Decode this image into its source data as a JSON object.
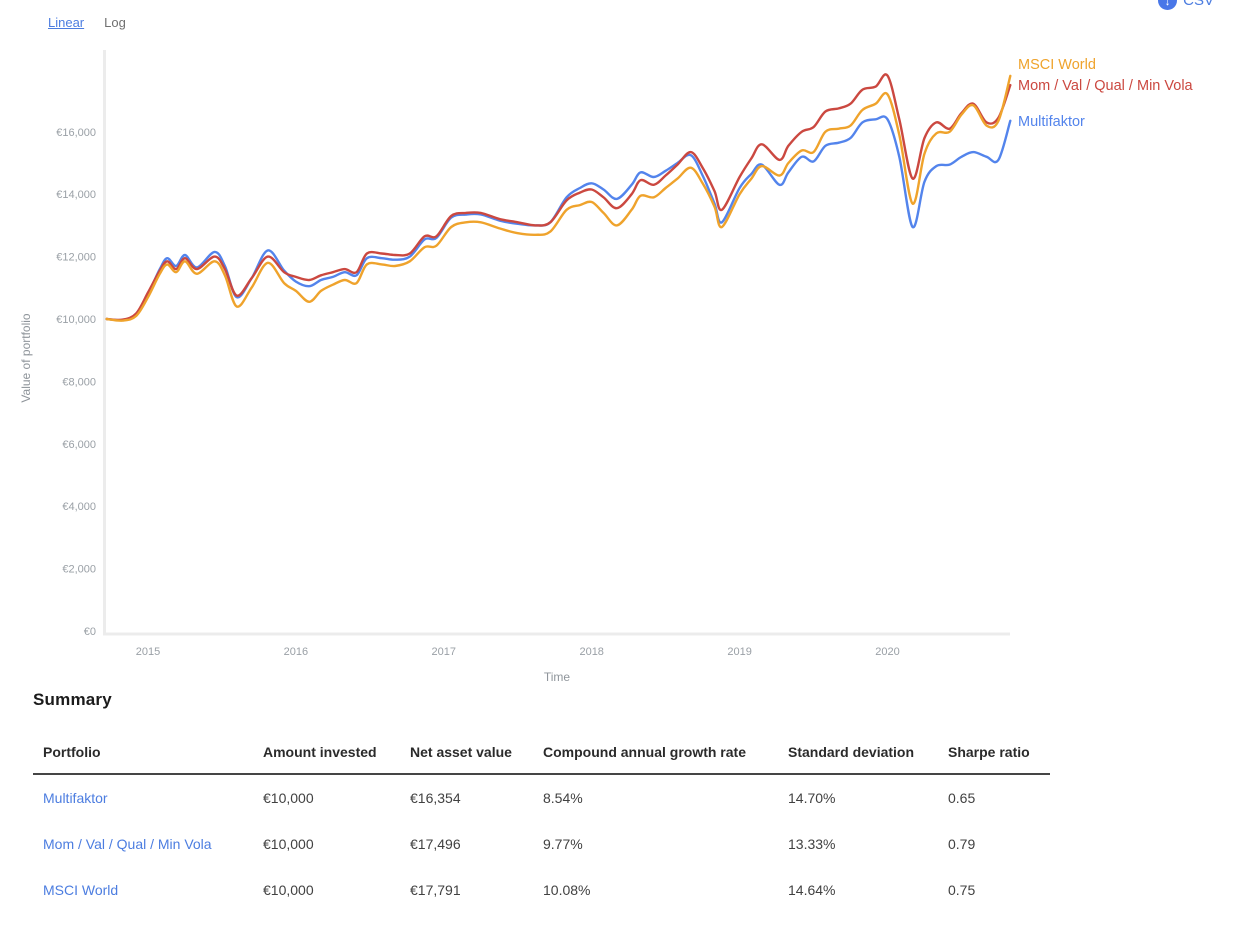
{
  "controls": {
    "scale_linear": "Linear",
    "scale_log": "Log",
    "csv_label": "CSV"
  },
  "chart_data": {
    "type": "line",
    "xlabel": "Time",
    "ylabel": "Value of portfolio",
    "grid": false,
    "legend_position": "right-of-line-ends",
    "x_axis": {
      "ticks": [
        {
          "value": 2015,
          "label": "2015"
        },
        {
          "value": 2016,
          "label": "2016"
        },
        {
          "value": 2017,
          "label": "2017"
        },
        {
          "value": 2018,
          "label": "2018"
        },
        {
          "value": 2019,
          "label": "2019"
        },
        {
          "value": 2020,
          "label": "2020"
        }
      ],
      "range": [
        2014.7,
        2020.85
      ]
    },
    "y_axis": {
      "ticks": [
        {
          "value": 0,
          "label": "€0"
        },
        {
          "value": 2000,
          "label": "€2,000"
        },
        {
          "value": 4000,
          "label": "€4,000"
        },
        {
          "value": 6000,
          "label": "€6,000"
        },
        {
          "value": 8000,
          "label": "€8,000"
        },
        {
          "value": 10000,
          "label": "€10,000"
        },
        {
          "value": 12000,
          "label": "€12,000"
        },
        {
          "value": 14000,
          "label": "€14,000"
        },
        {
          "value": 16000,
          "label": "€16,000"
        }
      ],
      "range": [
        0,
        18600
      ]
    },
    "x": [
      2014.72,
      2014.83,
      2014.92,
      2015.0,
      2015.08,
      2015.13,
      2015.19,
      2015.25,
      2015.33,
      2015.45,
      2015.52,
      2015.6,
      2015.7,
      2015.81,
      2015.92,
      2016.0,
      2016.09,
      2016.17,
      2016.25,
      2016.33,
      2016.41,
      2016.48,
      2016.58,
      2016.67,
      2016.77,
      2016.87,
      2016.95,
      2017.05,
      2017.15,
      2017.25,
      2017.38,
      2017.5,
      2017.62,
      2017.72,
      2017.83,
      2017.92,
      2018.0,
      2018.08,
      2018.17,
      2018.27,
      2018.33,
      2018.42,
      2018.5,
      2018.58,
      2018.67,
      2018.75,
      2018.83,
      2018.88,
      2019.0,
      2019.08,
      2019.15,
      2019.27,
      2019.33,
      2019.42,
      2019.5,
      2019.58,
      2019.67,
      2019.75,
      2019.83,
      2019.92,
      2020.0,
      2020.08,
      2020.17,
      2020.25,
      2020.33,
      2020.42,
      2020.5,
      2020.58,
      2020.67,
      2020.75,
      2020.83
    ],
    "series": [
      {
        "name": "Multifaktor",
        "color": "#5384ec",
        "values": [
          10000,
          9970,
          10150,
          10800,
          11600,
          11950,
          11700,
          12050,
          11650,
          12150,
          11700,
          10700,
          11300,
          12200,
          11550,
          11200,
          11050,
          11250,
          11350,
          11500,
          11400,
          11950,
          11950,
          11900,
          12000,
          12550,
          12600,
          13250,
          13350,
          13350,
          13150,
          13050,
          13000,
          13100,
          13900,
          14200,
          14350,
          14150,
          13850,
          14300,
          14700,
          14550,
          14750,
          15000,
          15250,
          14600,
          13700,
          13100,
          14200,
          14650,
          14950,
          14300,
          14700,
          15200,
          15050,
          15550,
          15650,
          15800,
          16300,
          16400,
          16400,
          15200,
          12950,
          14400,
          14900,
          14950,
          15200,
          15350,
          15200,
          15100,
          16354
        ]
      },
      {
        "name": "Mom / Val / Qual / Min Vola",
        "color": "#cb4840",
        "values": [
          10000,
          9980,
          10180,
          10850,
          11550,
          11850,
          11600,
          11950,
          11600,
          12000,
          11600,
          10750,
          11300,
          12000,
          11500,
          11350,
          11250,
          11400,
          11500,
          11600,
          11500,
          12100,
          12100,
          12050,
          12100,
          12650,
          12650,
          13300,
          13400,
          13400,
          13200,
          13100,
          13000,
          13100,
          13800,
          14050,
          14150,
          13900,
          13550,
          14000,
          14450,
          14300,
          14600,
          14950,
          15350,
          14850,
          14100,
          13500,
          14550,
          15150,
          15600,
          15100,
          15550,
          16000,
          16150,
          16650,
          16750,
          16900,
          17350,
          17450,
          17800,
          16400,
          14500,
          15800,
          16300,
          16100,
          16600,
          16900,
          16300,
          16450,
          17496
        ]
      },
      {
        "name": "MSCI World",
        "color": "#efa32c",
        "values": [
          10000,
          9950,
          10100,
          10700,
          11450,
          11750,
          11500,
          11850,
          11450,
          11850,
          11400,
          10400,
          11000,
          11800,
          11150,
          10900,
          10550,
          10900,
          11100,
          11250,
          11150,
          11750,
          11750,
          11700,
          11850,
          12300,
          12350,
          12950,
          13100,
          13100,
          12900,
          12750,
          12700,
          12800,
          13500,
          13650,
          13750,
          13400,
          13000,
          13500,
          13950,
          13900,
          14200,
          14500,
          14850,
          14350,
          13600,
          12950,
          14000,
          14500,
          14900,
          14600,
          15000,
          15400,
          15350,
          16000,
          16100,
          16200,
          16700,
          16900,
          17200,
          15900,
          13700,
          15300,
          15950,
          16000,
          16550,
          16850,
          16200,
          16350,
          17791
        ]
      }
    ]
  },
  "summary": {
    "heading": "Summary",
    "columns": {
      "portfolio": "Portfolio",
      "amount": "Amount invested",
      "nav": "Net asset value",
      "cagr": "Compound annual growth rate",
      "stddev": "Standard deviation",
      "sharpe": "Sharpe ratio"
    },
    "rows": [
      {
        "portfolio": "Multifaktor",
        "amount": "€10,000",
        "nav": "€16,354",
        "cagr": "8.54%",
        "stddev": "14.70%",
        "sharpe": "0.65"
      },
      {
        "portfolio": "Mom / Val / Qual / Min Vola",
        "amount": "€10,000",
        "nav": "€17,496",
        "cagr": "9.77%",
        "stddev": "13.33%",
        "sharpe": "0.79"
      },
      {
        "portfolio": "MSCI World",
        "amount": "€10,000",
        "nav": "€17,791",
        "cagr": "10.08%",
        "stddev": "14.64%",
        "sharpe": "0.75"
      }
    ]
  }
}
